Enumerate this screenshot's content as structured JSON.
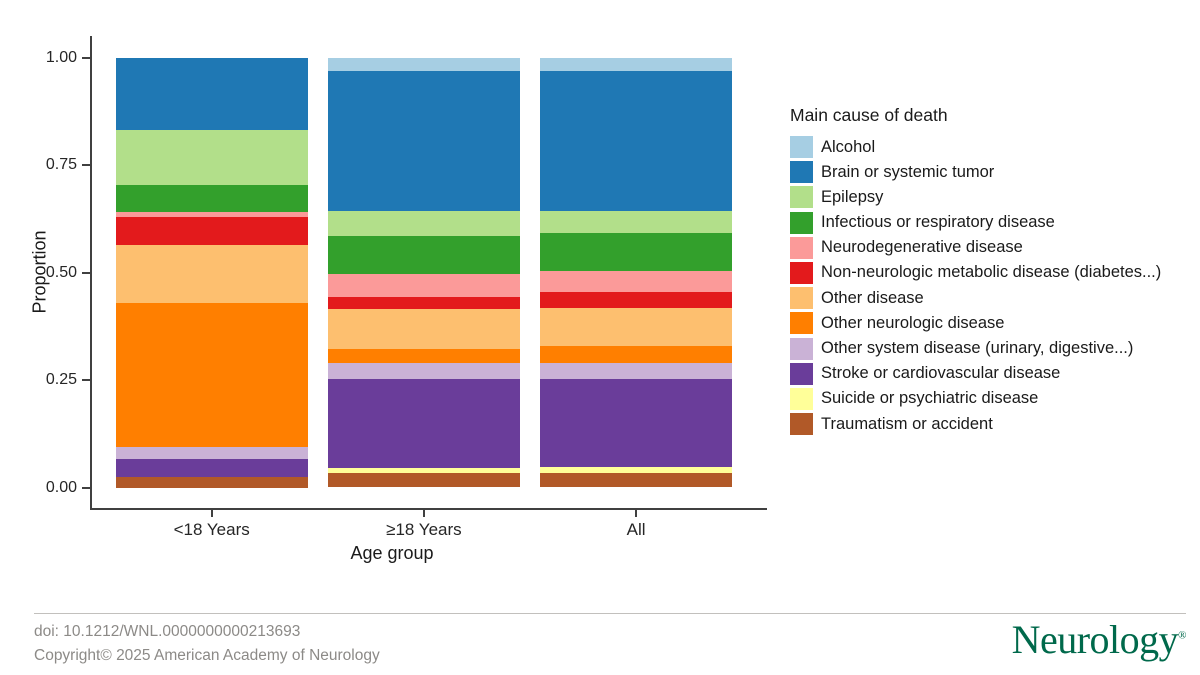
{
  "chart_data": {
    "type": "bar",
    "stacked": true,
    "orientation": "vertical",
    "categories": [
      "<18 Years",
      "≥18 Years",
      "All"
    ],
    "series": [
      {
        "name": "Alcohol",
        "color": "#A6CEE3",
        "values": [
          0,
          0.032,
          0.032
        ]
      },
      {
        "name": "Brain or systemic tumor",
        "color": "#1F78B4",
        "values": [
          0.168,
          0.325,
          0.325
        ]
      },
      {
        "name": "Epilepsy",
        "color": "#B2DF8A",
        "values": [
          0.129,
          0.057,
          0.05
        ]
      },
      {
        "name": "Infectious or respiratory disease",
        "color": "#33A02C",
        "values": [
          0.063,
          0.09,
          0.089
        ]
      },
      {
        "name": "Neurodegenerative disease",
        "color": "#FB9A99",
        "values": [
          0.012,
          0.052,
          0.05
        ]
      },
      {
        "name": "Non-neurologic metabolic disease (diabetes...)",
        "color": "#E31A1C",
        "values": [
          0.065,
          0.029,
          0.037
        ]
      },
      {
        "name": "Other disease",
        "color": "#FDBF6F",
        "values": [
          0.133,
          0.093,
          0.089
        ]
      },
      {
        "name": "Other neurologic disease",
        "color": "#FF7F00",
        "values": [
          0.336,
          0.032,
          0.039
        ]
      },
      {
        "name": "Other system disease (urinary, digestive...)",
        "color": "#CAB2D6",
        "values": [
          0.027,
          0.037,
          0.036
        ]
      },
      {
        "name": "Stroke or cardiovascular disease",
        "color": "#6A3D9A",
        "values": [
          0.042,
          0.207,
          0.205
        ]
      },
      {
        "name": "Suicide or psychiatric disease",
        "color": "#FFFF99",
        "values": [
          0,
          0.012,
          0.014
        ]
      },
      {
        "name": "Traumatism or accident",
        "color": "#B15928",
        "values": [
          0.025,
          0.034,
          0.034
        ]
      }
    ],
    "stack_order_note": "bottom of each bar is last series (Traumatism or accident), top is first (Alcohol)",
    "legend_title": "Main cause of death",
    "legend_position": "right",
    "xlabel": "Age group",
    "ylabel": "Proportion",
    "ylim": [
      0,
      1
    ],
    "ytick_values": [
      0,
      0.25,
      0.5,
      0.75,
      1
    ],
    "ytick_labels": [
      "0.00",
      "0.25",
      "0.50",
      "0.75",
      "1.00"
    ],
    "grid": false
  },
  "footer": {
    "doi": "doi: 10.1212/WNL.0000000000213693",
    "copyright": "Copyright© 2025 American Academy of Neurology",
    "logo_text": "Neurology",
    "logo_registered_mark": "®",
    "logo_color": "#00694B"
  }
}
